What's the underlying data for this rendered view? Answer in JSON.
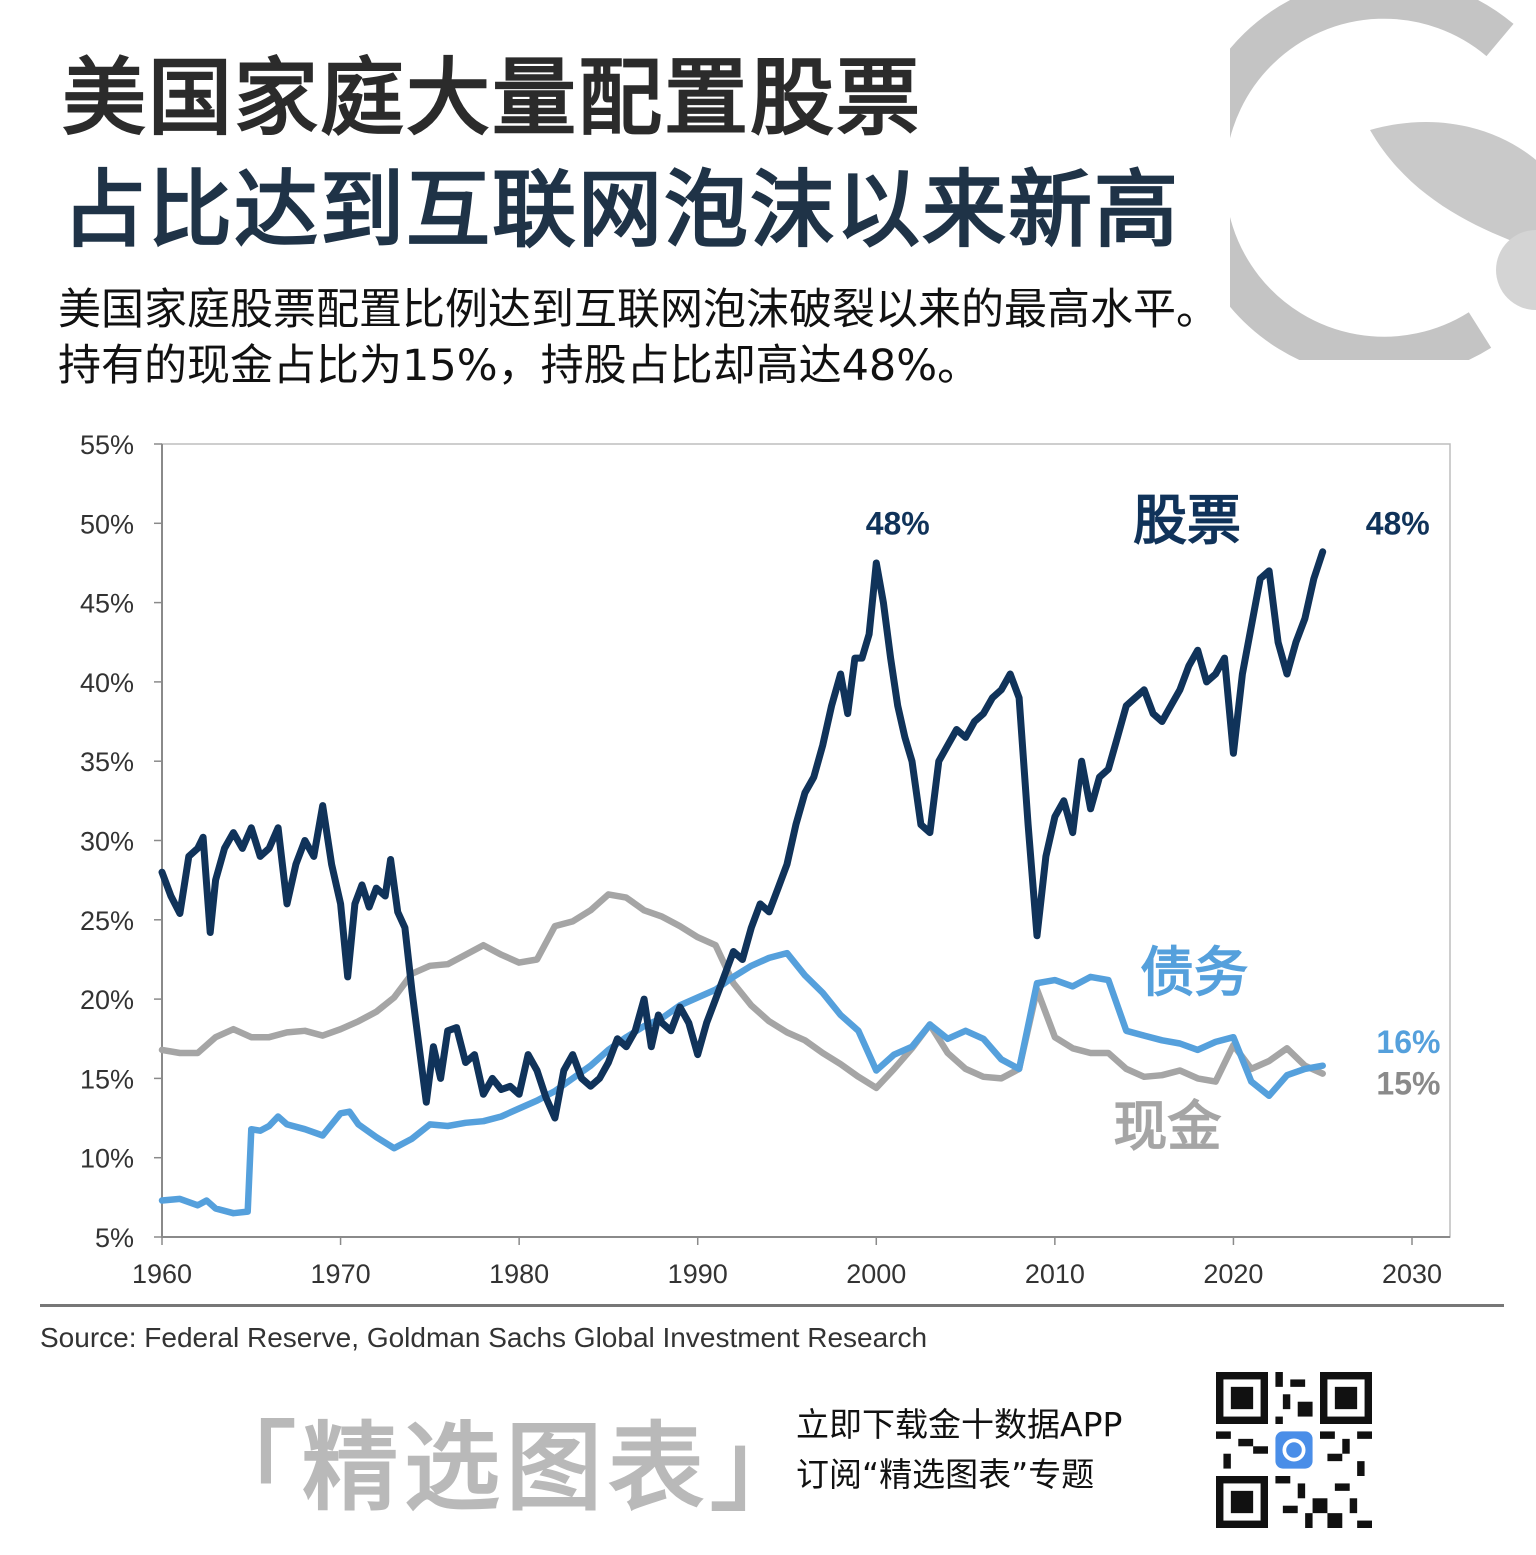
{
  "header": {
    "title_line1": "美国家庭大量配置股票",
    "title_line2": "占比达到互联网泡沫以来新高",
    "subtitle": "美国家庭股票配置比例达到互联网泡沫破裂以来的最高水平。持有的现金占比为15%，持股占比却高达48%。"
  },
  "chart_data": {
    "type": "line",
    "xlim": [
      1960,
      2030
    ],
    "ylim": [
      5,
      55
    ],
    "x_ticks": [
      "1960",
      "1970",
      "1980",
      "1990",
      "2000",
      "2010",
      "2020",
      "2030"
    ],
    "y_ticks": [
      "55%",
      "50%",
      "45%",
      "40%",
      "35%",
      "30%",
      "25%",
      "20%",
      "15%",
      "10%",
      "5%"
    ],
    "grid": false,
    "series": [
      {
        "name": "股票",
        "color": "#10335a",
        "points": [
          [
            1960,
            28.0
          ],
          [
            1960.5,
            26.5
          ],
          [
            1961,
            25.4
          ],
          [
            1961.5,
            29.0
          ],
          [
            1962,
            29.5
          ],
          [
            1962.3,
            30.2
          ],
          [
            1962.7,
            24.2
          ],
          [
            1963,
            27.5
          ],
          [
            1963.5,
            29.5
          ],
          [
            1964,
            30.5
          ],
          [
            1964.5,
            29.5
          ],
          [
            1965,
            30.8
          ],
          [
            1965.5,
            29.0
          ],
          [
            1966,
            29.5
          ],
          [
            1966.5,
            30.8
          ],
          [
            1967,
            26.0
          ],
          [
            1967.5,
            28.5
          ],
          [
            1968,
            30.0
          ],
          [
            1968.5,
            29.0
          ],
          [
            1969,
            32.2
          ],
          [
            1969.5,
            28.5
          ],
          [
            1970,
            26.0
          ],
          [
            1970.4,
            21.4
          ],
          [
            1970.8,
            26.0
          ],
          [
            1971.2,
            27.2
          ],
          [
            1971.6,
            25.8
          ],
          [
            1972,
            27.0
          ],
          [
            1972.5,
            26.5
          ],
          [
            1972.8,
            28.8
          ],
          [
            1973.2,
            25.5
          ],
          [
            1973.6,
            24.5
          ],
          [
            1974,
            20.5
          ],
          [
            1974.4,
            17.0
          ],
          [
            1974.8,
            13.5
          ],
          [
            1975.2,
            17.0
          ],
          [
            1975.6,
            15.0
          ],
          [
            1976,
            18.0
          ],
          [
            1976.5,
            18.2
          ],
          [
            1977,
            16.0
          ],
          [
            1977.5,
            16.5
          ],
          [
            1978,
            14.0
          ],
          [
            1978.5,
            15.0
          ],
          [
            1979,
            14.3
          ],
          [
            1979.5,
            14.5
          ],
          [
            1980,
            14.0
          ],
          [
            1980.5,
            16.5
          ],
          [
            1981,
            15.5
          ],
          [
            1981.5,
            13.8
          ],
          [
            1982,
            12.5
          ],
          [
            1982.5,
            15.5
          ],
          [
            1983,
            16.5
          ],
          [
            1983.5,
            15.0
          ],
          [
            1984,
            14.5
          ],
          [
            1984.5,
            15.0
          ],
          [
            1985,
            16.0
          ],
          [
            1985.5,
            17.5
          ],
          [
            1986,
            17.0
          ],
          [
            1986.5,
            18.0
          ],
          [
            1987,
            20.0
          ],
          [
            1987.4,
            17.0
          ],
          [
            1987.8,
            19.0
          ],
          [
            1988,
            18.5
          ],
          [
            1988.5,
            18.0
          ],
          [
            1989,
            19.5
          ],
          [
            1989.5,
            18.5
          ],
          [
            1990,
            16.5
          ],
          [
            1990.5,
            18.5
          ],
          [
            1991,
            20.0
          ],
          [
            1991.5,
            21.5
          ],
          [
            1992,
            23.0
          ],
          [
            1992.5,
            22.5
          ],
          [
            1993,
            24.5
          ],
          [
            1993.5,
            26.0
          ],
          [
            1994,
            25.5
          ],
          [
            1994.5,
            27.0
          ],
          [
            1995,
            28.5
          ],
          [
            1995.5,
            31.0
          ],
          [
            1996,
            33.0
          ],
          [
            1996.5,
            34.0
          ],
          [
            1997,
            36.0
          ],
          [
            1997.5,
            38.5
          ],
          [
            1998,
            40.5
          ],
          [
            1998.4,
            38.0
          ],
          [
            1998.8,
            41.5
          ],
          [
            1999.2,
            41.5
          ],
          [
            1999.6,
            43.0
          ],
          [
            2000,
            47.5
          ],
          [
            2000.4,
            45.0
          ],
          [
            2000.8,
            41.5
          ],
          [
            2001.2,
            38.5
          ],
          [
            2001.6,
            36.5
          ],
          [
            2002,
            35.0
          ],
          [
            2002.5,
            31.0
          ],
          [
            2003,
            30.5
          ],
          [
            2003.5,
            35.0
          ],
          [
            2004,
            36.0
          ],
          [
            2004.5,
            37.0
          ],
          [
            2005,
            36.5
          ],
          [
            2005.5,
            37.5
          ],
          [
            2006,
            38.0
          ],
          [
            2006.5,
            39.0
          ],
          [
            2007,
            39.5
          ],
          [
            2007.5,
            40.5
          ],
          [
            2008,
            39.0
          ],
          [
            2008.5,
            31.0
          ],
          [
            2009,
            24.0
          ],
          [
            2009.5,
            29.0
          ],
          [
            2010,
            31.5
          ],
          [
            2010.5,
            32.5
          ],
          [
            2011,
            30.5
          ],
          [
            2011.5,
            35.0
          ],
          [
            2012,
            32.0
          ],
          [
            2012.5,
            34.0
          ],
          [
            2013,
            34.5
          ],
          [
            2013.5,
            36.5
          ],
          [
            2014,
            38.5
          ],
          [
            2014.5,
            39.0
          ],
          [
            2015,
            39.5
          ],
          [
            2015.5,
            38.0
          ],
          [
            2016,
            37.5
          ],
          [
            2016.5,
            38.5
          ],
          [
            2017,
            39.5
          ],
          [
            2017.5,
            41.0
          ],
          [
            2018,
            42.0
          ],
          [
            2018.5,
            40.0
          ],
          [
            2019,
            40.5
          ],
          [
            2019.5,
            41.5
          ],
          [
            2020,
            35.5
          ],
          [
            2020.5,
            40.5
          ],
          [
            2021,
            43.5
          ],
          [
            2021.5,
            46.5
          ],
          [
            2022,
            47.0
          ],
          [
            2022.5,
            42.5
          ],
          [
            2023,
            40.5
          ],
          [
            2023.5,
            42.5
          ],
          [
            2024,
            44.0
          ],
          [
            2024.5,
            46.5
          ],
          [
            2025,
            48.2
          ]
        ]
      },
      {
        "name": "债务",
        "color": "#55a0dc",
        "points": [
          [
            1960,
            7.3
          ],
          [
            1961,
            7.4
          ],
          [
            1962,
            7.0
          ],
          [
            1962.5,
            7.3
          ],
          [
            1963,
            6.8
          ],
          [
            1964,
            6.5
          ],
          [
            1964.8,
            6.6
          ],
          [
            1965,
            11.8
          ],
          [
            1965.5,
            11.7
          ],
          [
            1966,
            12.0
          ],
          [
            1966.5,
            12.6
          ],
          [
            1967,
            12.1
          ],
          [
            1968,
            11.8
          ],
          [
            1969,
            11.4
          ],
          [
            1970,
            12.8
          ],
          [
            1970.5,
            12.9
          ],
          [
            1971,
            12.1
          ],
          [
            1972,
            11.3
          ],
          [
            1973,
            10.6
          ],
          [
            1974,
            11.2
          ],
          [
            1975,
            12.1
          ],
          [
            1976,
            12.0
          ],
          [
            1977,
            12.2
          ],
          [
            1978,
            12.3
          ],
          [
            1979,
            12.6
          ],
          [
            1980,
            13.1
          ],
          [
            1981,
            13.6
          ],
          [
            1982,
            14.2
          ],
          [
            1983,
            15.0
          ],
          [
            1984,
            15.8
          ],
          [
            1985,
            16.8
          ],
          [
            1986,
            17.6
          ],
          [
            1987,
            18.3
          ],
          [
            1988,
            18.8
          ],
          [
            1989,
            19.6
          ],
          [
            1990,
            20.1
          ],
          [
            1991,
            20.6
          ],
          [
            1992,
            21.4
          ],
          [
            1993,
            22.1
          ],
          [
            1994,
            22.6
          ],
          [
            1995,
            22.9
          ],
          [
            1996,
            21.5
          ],
          [
            1997,
            20.4
          ],
          [
            1998,
            19.0
          ],
          [
            1999,
            18.0
          ],
          [
            2000,
            15.5
          ],
          [
            2001,
            16.5
          ],
          [
            2002,
            17.0
          ],
          [
            2003,
            18.4
          ],
          [
            2004,
            17.5
          ],
          [
            2005,
            18.0
          ],
          [
            2006,
            17.5
          ],
          [
            2007,
            16.2
          ],
          [
            2008,
            15.6
          ],
          [
            2009,
            21.0
          ],
          [
            2010,
            21.2
          ],
          [
            2011,
            20.8
          ],
          [
            2012,
            21.4
          ],
          [
            2013,
            21.2
          ],
          [
            2014,
            18.0
          ],
          [
            2015,
            17.7
          ],
          [
            2016,
            17.4
          ],
          [
            2017,
            17.2
          ],
          [
            2018,
            16.8
          ],
          [
            2019,
            17.3
          ],
          [
            2020,
            17.6
          ],
          [
            2021,
            14.8
          ],
          [
            2022,
            13.9
          ],
          [
            2023,
            15.2
          ],
          [
            2024,
            15.6
          ],
          [
            2025,
            15.8
          ]
        ]
      },
      {
        "name": "现金",
        "color": "#a5a5a5",
        "points": [
          [
            1960,
            16.8
          ],
          [
            1961,
            16.6
          ],
          [
            1962,
            16.6
          ],
          [
            1963,
            17.6
          ],
          [
            1964,
            18.1
          ],
          [
            1965,
            17.6
          ],
          [
            1966,
            17.6
          ],
          [
            1967,
            17.9
          ],
          [
            1968,
            18.0
          ],
          [
            1969,
            17.7
          ],
          [
            1970,
            18.1
          ],
          [
            1971,
            18.6
          ],
          [
            1972,
            19.2
          ],
          [
            1973,
            20.1
          ],
          [
            1974,
            21.6
          ],
          [
            1975,
            22.1
          ],
          [
            1976,
            22.2
          ],
          [
            1977,
            22.8
          ],
          [
            1978,
            23.4
          ],
          [
            1979,
            22.8
          ],
          [
            1980,
            22.3
          ],
          [
            1981,
            22.5
          ],
          [
            1982,
            24.6
          ],
          [
            1983,
            24.9
          ],
          [
            1984,
            25.6
          ],
          [
            1985,
            26.6
          ],
          [
            1986,
            26.4
          ],
          [
            1987,
            25.6
          ],
          [
            1988,
            25.2
          ],
          [
            1989,
            24.6
          ],
          [
            1990,
            23.9
          ],
          [
            1991,
            23.4
          ],
          [
            1992,
            21.0
          ],
          [
            1993,
            19.6
          ],
          [
            1994,
            18.6
          ],
          [
            1995,
            17.9
          ],
          [
            1996,
            17.4
          ],
          [
            1997,
            16.6
          ],
          [
            1998,
            15.9
          ],
          [
            1999,
            15.1
          ],
          [
            2000,
            14.4
          ],
          [
            2001,
            15.6
          ],
          [
            2002,
            16.9
          ],
          [
            2003,
            18.4
          ],
          [
            2004,
            16.6
          ],
          [
            2005,
            15.6
          ],
          [
            2006,
            15.1
          ],
          [
            2007,
            15.0
          ],
          [
            2008,
            15.6
          ],
          [
            2009,
            20.6
          ],
          [
            2010,
            17.6
          ],
          [
            2011,
            16.9
          ],
          [
            2012,
            16.6
          ],
          [
            2013,
            16.6
          ],
          [
            2014,
            15.6
          ],
          [
            2015,
            15.1
          ],
          [
            2016,
            15.2
          ],
          [
            2017,
            15.5
          ],
          [
            2018,
            15.0
          ],
          [
            2019,
            14.8
          ],
          [
            2020,
            17.1
          ],
          [
            2021,
            15.6
          ],
          [
            2022,
            16.1
          ],
          [
            2023,
            16.9
          ],
          [
            2024,
            15.8
          ],
          [
            2025,
            15.3
          ]
        ]
      }
    ],
    "annotations": [
      {
        "text": "48%",
        "x": 2001.2,
        "y": 49.3,
        "color": "#10335a"
      },
      {
        "text": "股票",
        "x": 2017.4,
        "y": 49.0,
        "color": "#10335a",
        "series_label": true
      },
      {
        "text": "48%",
        "x": 2029.2,
        "y": 49.3,
        "color": "#10335a"
      },
      {
        "text": "债务",
        "x": 2017.8,
        "y": 20.5,
        "color": "#55a0dc",
        "series_label": true
      },
      {
        "text": "16%",
        "x": 2029.8,
        "y": 16.6,
        "color": "#55a0dc"
      },
      {
        "text": "15%",
        "x": 2029.8,
        "y": 14.0,
        "color": "#8a8a8a"
      },
      {
        "text": "现金",
        "x": 2016.3,
        "y": 10.8,
        "color": "#a5a5a5",
        "series_label": true
      }
    ]
  },
  "source": "Source: Federal Reserve, Goldman Sachs Global Investment Research",
  "footer": {
    "brand": "「精选图表」",
    "promo_line1": "立即下载金十数据APP",
    "promo_line2": "订阅“精选图表”专题"
  },
  "icons": {
    "logo": "jin10-logo-mark",
    "qr": "qr-code",
    "app": "app-icon"
  }
}
